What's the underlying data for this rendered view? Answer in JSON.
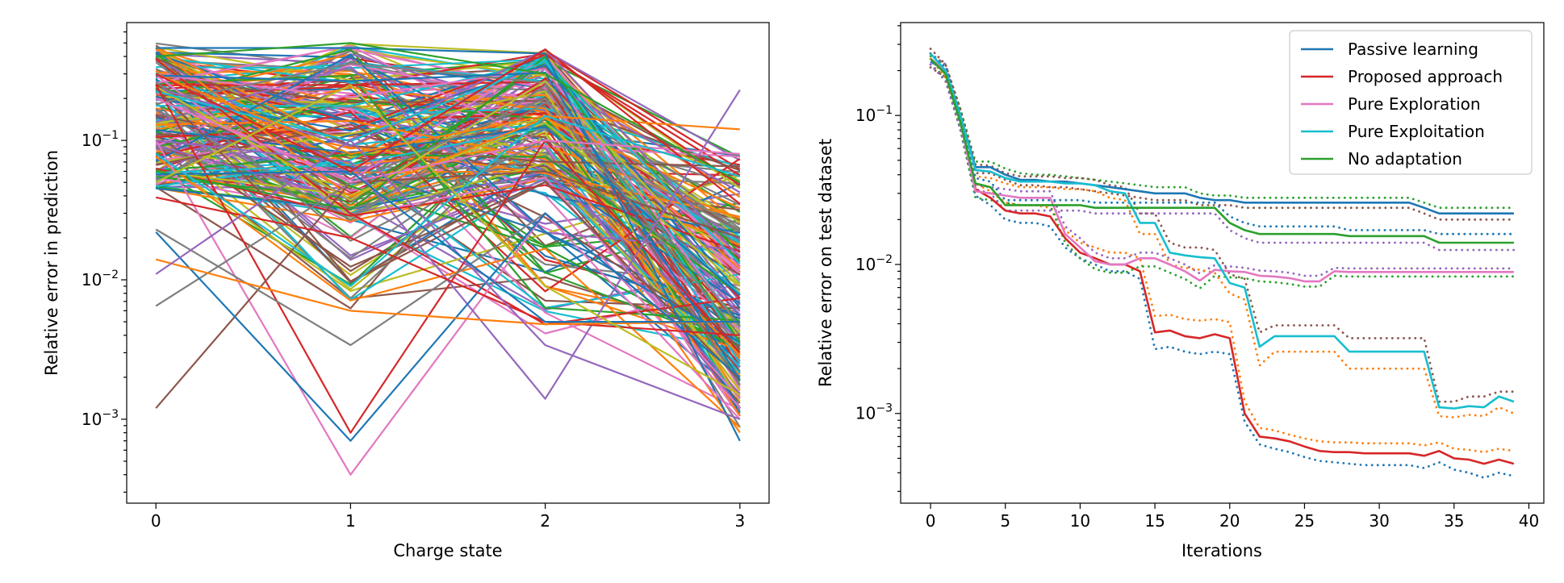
{
  "chart_data": [
    {
      "type": "line",
      "xlabel": "Charge state",
      "ylabel": "Relative error in prediction",
      "yscale": "log",
      "xlim": [
        -0.15,
        3.15
      ],
      "ylim": [
        0.00025,
        0.7
      ],
      "x_ticks": [
        0,
        1,
        2,
        3
      ],
      "y_ticks": [
        {
          "value": 0.1,
          "base": "10",
          "exp": "−1"
        },
        {
          "value": 0.01,
          "base": "10",
          "exp": "−2"
        },
        {
          "value": 0.001,
          "base": "10",
          "exp": "−3"
        }
      ],
      "x": [
        0,
        1,
        2,
        3
      ],
      "n_series": 220,
      "series": [
        {
          "values": [
            0.46,
            0.46,
            0.42,
            0.0007
          ],
          "color": "#1f77b4"
        },
        {
          "values": [
            0.25,
            0.0008,
            0.1,
            0.003
          ],
          "color": "#d62728"
        },
        {
          "values": [
            0.1,
            0.0004,
            0.03,
            0.001
          ],
          "color": "#e377c2"
        },
        {
          "values": [
            0.0012,
            0.05,
            0.06,
            0.02
          ],
          "color": "#8c564b"
        },
        {
          "values": [
            0.0065,
            0.05,
            0.2,
            0.004
          ],
          "color": "#7f7f7f"
        },
        {
          "values": [
            0.023,
            0.0034,
            0.03,
            0.002
          ],
          "color": "#7f7f7f"
        },
        {
          "values": [
            0.1,
            0.07,
            0.0014,
            0.23
          ],
          "color": "#9467bd"
        },
        {
          "values": [
            0.3,
            0.08,
            0.15,
            0.12
          ],
          "color": "#ff7f0e"
        },
        {
          "values": [
            0.2,
            0.05,
            0.1,
            0.08
          ],
          "color": "#e377c2"
        },
        {
          "values": [
            0.022,
            0.0007,
            0.03,
            0.002
          ],
          "color": "#1f77b4"
        },
        {
          "values": [
            0.039,
            0.02,
            0.005,
            0.004
          ],
          "color": "#d62728"
        },
        {
          "values": [
            0.014,
            0.006,
            0.0048,
            0.005
          ],
          "color": "#ff7f0e"
        },
        {
          "values": [
            0.011,
            0.1,
            0.0034,
            0.001
          ],
          "color": "#9467bd"
        },
        {
          "values": [
            0.057,
            0.06,
            0.005,
            0.005
          ],
          "color": "#1f77b4"
        },
        {
          "values": [
            0.4,
            0.5,
            0.3,
            0.05
          ],
          "color": "#2ca02c"
        },
        {
          "values": [
            0.3,
            0.06,
            0.45,
            0.035
          ],
          "color": "#d62728"
        },
        {
          "values": [
            0.08,
            0.009,
            0.15,
            0.055
          ],
          "color": "#17becf"
        },
        {
          "values": [
            0.05,
            0.25,
            0.009,
            0.0015
          ],
          "color": "#bcbd22"
        }
      ],
      "colors": [
        "#1f77b4",
        "#ff7f0e",
        "#2ca02c",
        "#d62728",
        "#9467bd",
        "#8c564b",
        "#e377c2",
        "#7f7f7f",
        "#bcbd22",
        "#17becf"
      ]
    },
    {
      "type": "line",
      "xlabel": "Iterations",
      "ylabel": "Relative error on test dataset",
      "yscale": "log",
      "xlim": [
        -2,
        41
      ],
      "ylim": [
        0.00025,
        0.42
      ],
      "x_ticks": [
        0,
        5,
        10,
        15,
        20,
        25,
        30,
        35,
        40
      ],
      "y_ticks": [
        {
          "value": 0.1,
          "base": "10",
          "exp": "−1"
        },
        {
          "value": 0.01,
          "base": "10",
          "exp": "−2"
        },
        {
          "value": 0.001,
          "base": "10",
          "exp": "−3"
        }
      ],
      "legend_position": "top-right",
      "series": [
        {
          "name": "Passive learning",
          "color": "#1f77b4",
          "values": [
            0.23,
            0.2,
            0.1,
            0.045,
            0.045,
            0.04,
            0.037,
            0.037,
            0.036,
            0.036,
            0.035,
            0.034,
            0.033,
            0.032,
            0.031,
            0.03,
            0.03,
            0.03,
            0.028,
            0.027,
            0.027,
            0.026,
            0.026,
            0.026,
            0.026,
            0.026,
            0.026,
            0.026,
            0.026,
            0.026,
            0.026,
            0.026,
            0.026,
            0.024,
            0.022,
            0.022,
            0.022,
            0.022,
            0.022,
            0.022
          ],
          "upper": [
            0.25,
            0.22,
            0.11,
            0.049,
            0.049,
            0.044,
            0.041,
            0.04,
            0.04,
            0.039,
            0.038,
            0.037,
            0.036,
            0.035,
            0.034,
            0.033,
            0.033,
            0.033,
            0.03,
            0.029,
            0.029,
            0.028,
            0.028,
            0.028,
            0.028,
            0.028,
            0.028,
            0.028,
            0.028,
            0.028,
            0.028,
            0.028,
            0.028,
            0.026,
            0.024,
            0.024,
            0.024,
            0.024,
            0.024,
            0.024
          ],
          "lower": [
            0.21,
            0.18,
            0.09,
            0.041,
            0.041,
            0.037,
            0.034,
            0.034,
            0.033,
            0.033,
            0.032,
            0.031,
            0.03,
            0.029,
            0.028,
            0.027,
            0.027,
            0.027,
            0.025,
            0.025,
            0.025,
            0.024,
            0.024,
            0.024,
            0.024,
            0.024,
            0.024,
            0.024,
            0.024,
            0.024,
            0.024,
            0.024,
            0.024,
            0.022,
            0.02,
            0.02,
            0.02,
            0.02,
            0.02,
            0.02
          ]
        },
        {
          "name": "Proposed approach",
          "color": "#d62728",
          "values": [
            0.24,
            0.19,
            0.09,
            0.032,
            0.028,
            0.023,
            0.022,
            0.022,
            0.021,
            0.015,
            0.012,
            0.011,
            0.01,
            0.01,
            0.009,
            0.0035,
            0.0036,
            0.0033,
            0.0032,
            0.0034,
            0.0032,
            0.001,
            0.0007,
            0.00068,
            0.00065,
            0.0006,
            0.00056,
            0.00055,
            0.00055,
            0.00054,
            0.00054,
            0.00054,
            0.00054,
            0.00052,
            0.00056,
            0.0005,
            0.00049,
            0.00046,
            0.00049,
            0.00046
          ],
          "upper": [
            0.26,
            0.21,
            0.1,
            0.035,
            0.031,
            0.026,
            0.025,
            0.025,
            0.024,
            0.017,
            0.014,
            0.013,
            0.012,
            0.012,
            0.011,
            0.0045,
            0.0046,
            0.0043,
            0.0042,
            0.0043,
            0.0041,
            0.0012,
            0.0008,
            0.00077,
            0.00072,
            0.00068,
            0.00065,
            0.00064,
            0.00064,
            0.00063,
            0.00063,
            0.00063,
            0.00063,
            0.00061,
            0.00064,
            0.00058,
            0.00057,
            0.00055,
            0.00058,
            0.00056
          ],
          "lower": [
            0.22,
            0.17,
            0.08,
            0.029,
            0.025,
            0.02,
            0.019,
            0.019,
            0.018,
            0.013,
            0.011,
            0.01,
            0.009,
            0.009,
            0.008,
            0.0027,
            0.0028,
            0.0026,
            0.0025,
            0.0026,
            0.0025,
            0.00088,
            0.00062,
            0.00058,
            0.00055,
            0.00051,
            0.00048,
            0.00047,
            0.00046,
            0.00045,
            0.00045,
            0.00045,
            0.00045,
            0.00043,
            0.00047,
            0.00042,
            0.0004,
            0.00037,
            0.0004,
            0.00038
          ]
        },
        {
          "name": "Pure Exploration",
          "color": "#e377c2",
          "values": [
            0.24,
            0.2,
            0.09,
            0.031,
            0.03,
            0.029,
            0.028,
            0.028,
            0.028,
            0.016,
            0.013,
            0.0105,
            0.01,
            0.01,
            0.011,
            0.011,
            0.01,
            0.009,
            0.0078,
            0.0092,
            0.009,
            0.0089,
            0.0084,
            0.0083,
            0.0081,
            0.0077,
            0.0077,
            0.009,
            0.0089,
            0.0089,
            0.0089,
            0.0089,
            0.0089,
            0.0089,
            0.0089,
            0.0089,
            0.0089,
            0.0089,
            0.0089,
            0.0089
          ],
          "upper": [
            0.26,
            0.22,
            0.1,
            0.034,
            0.033,
            0.032,
            0.031,
            0.031,
            0.031,
            0.018,
            0.015,
            0.012,
            0.011,
            0.011,
            0.012,
            0.012,
            0.011,
            0.01,
            0.0087,
            0.0099,
            0.0097,
            0.0095,
            0.0091,
            0.009,
            0.0088,
            0.0084,
            0.0084,
            0.0095,
            0.0094,
            0.0094,
            0.0094,
            0.0094,
            0.0094,
            0.0094,
            0.0094,
            0.0094,
            0.0094,
            0.0094,
            0.0094,
            0.0094
          ],
          "lower": [
            0.22,
            0.18,
            0.08,
            0.028,
            0.027,
            0.026,
            0.025,
            0.025,
            0.025,
            0.014,
            0.011,
            0.0093,
            0.0088,
            0.0088,
            0.0097,
            0.0097,
            0.0088,
            0.008,
            0.0069,
            0.0084,
            0.0082,
            0.0081,
            0.0077,
            0.0076,
            0.0074,
            0.0071,
            0.0071,
            0.0084,
            0.0083,
            0.0083,
            0.0083,
            0.0083,
            0.0083,
            0.0083,
            0.0083,
            0.0083,
            0.0083,
            0.0083,
            0.0083,
            0.0083
          ]
        },
        {
          "name": "Pure Exploitation",
          "color": "#17becf",
          "values": [
            0.26,
            0.2,
            0.1,
            0.043,
            0.042,
            0.038,
            0.036,
            0.036,
            0.036,
            0.035,
            0.035,
            0.034,
            0.031,
            0.03,
            0.019,
            0.019,
            0.012,
            0.0115,
            0.0112,
            0.011,
            0.0075,
            0.007,
            0.0028,
            0.0033,
            0.0033,
            0.0033,
            0.0033,
            0.0033,
            0.0026,
            0.0026,
            0.0026,
            0.0026,
            0.0026,
            0.0026,
            0.0011,
            0.00108,
            0.00112,
            0.0011,
            0.0013,
            0.0012
          ],
          "upper": [
            0.28,
            0.22,
            0.11,
            0.047,
            0.046,
            0.041,
            0.039,
            0.039,
            0.039,
            0.038,
            0.038,
            0.037,
            0.034,
            0.033,
            0.022,
            0.022,
            0.014,
            0.013,
            0.013,
            0.0125,
            0.0086,
            0.008,
            0.0035,
            0.0039,
            0.0039,
            0.0039,
            0.0039,
            0.0039,
            0.0032,
            0.0032,
            0.0032,
            0.0032,
            0.0032,
            0.0032,
            0.0012,
            0.0012,
            0.0013,
            0.0013,
            0.0014,
            0.0014
          ],
          "lower": [
            0.24,
            0.18,
            0.09,
            0.039,
            0.038,
            0.035,
            0.033,
            0.033,
            0.033,
            0.032,
            0.032,
            0.031,
            0.028,
            0.027,
            0.016,
            0.016,
            0.01,
            0.0095,
            0.0092,
            0.0088,
            0.0064,
            0.0058,
            0.0021,
            0.0026,
            0.0026,
            0.0026,
            0.0026,
            0.0026,
            0.002,
            0.002,
            0.002,
            0.002,
            0.002,
            0.002,
            0.00096,
            0.00094,
            0.00098,
            0.00096,
            0.0011,
            0.001
          ]
        },
        {
          "name": "No adaptation",
          "color": "#2ca02c",
          "values": [
            0.24,
            0.19,
            0.09,
            0.035,
            0.033,
            0.025,
            0.025,
            0.025,
            0.025,
            0.025,
            0.025,
            0.024,
            0.024,
            0.024,
            0.024,
            0.024,
            0.024,
            0.024,
            0.024,
            0.024,
            0.019,
            0.017,
            0.016,
            0.016,
            0.016,
            0.016,
            0.016,
            0.016,
            0.0155,
            0.0155,
            0.0155,
            0.0155,
            0.0155,
            0.0155,
            0.014,
            0.014,
            0.014,
            0.014,
            0.014,
            0.014
          ],
          "upper": [
            0.26,
            0.21,
            0.1,
            0.038,
            0.036,
            0.027,
            0.027,
            0.027,
            0.027,
            0.027,
            0.027,
            0.026,
            0.026,
            0.026,
            0.026,
            0.026,
            0.026,
            0.026,
            0.026,
            0.026,
            0.021,
            0.019,
            0.018,
            0.018,
            0.018,
            0.018,
            0.018,
            0.018,
            0.017,
            0.017,
            0.017,
            0.017,
            0.017,
            0.017,
            0.016,
            0.016,
            0.016,
            0.016,
            0.016,
            0.016
          ],
          "lower": [
            0.22,
            0.17,
            0.08,
            0.032,
            0.03,
            0.023,
            0.023,
            0.023,
            0.023,
            0.023,
            0.023,
            0.022,
            0.022,
            0.022,
            0.022,
            0.022,
            0.022,
            0.022,
            0.022,
            0.022,
            0.017,
            0.015,
            0.014,
            0.014,
            0.014,
            0.014,
            0.014,
            0.014,
            0.014,
            0.014,
            0.014,
            0.014,
            0.014,
            0.014,
            0.0125,
            0.0125,
            0.0125,
            0.0125,
            0.0125,
            0.0125
          ]
        }
      ]
    }
  ]
}
